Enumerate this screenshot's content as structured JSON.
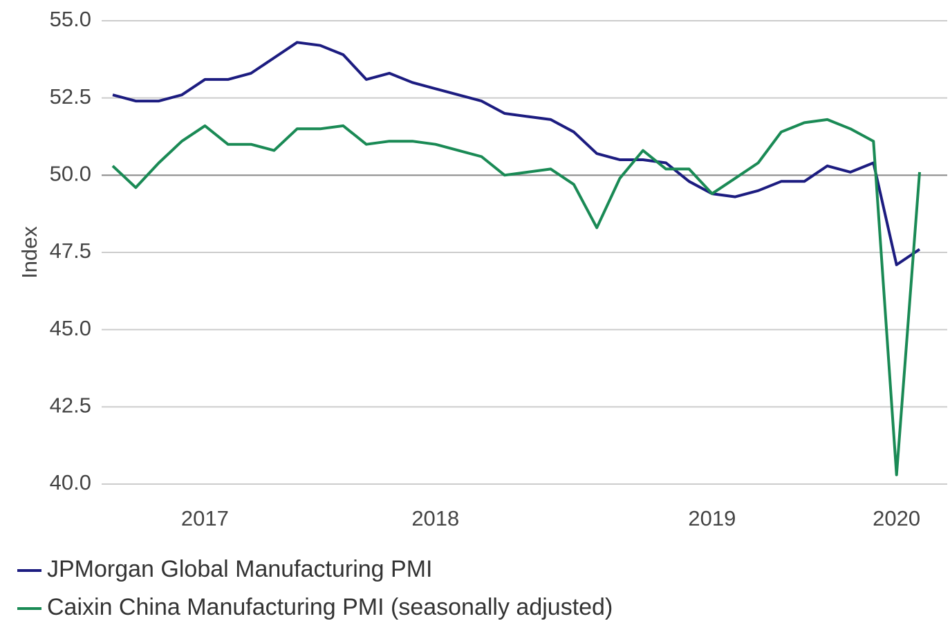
{
  "chart_data": {
    "type": "line",
    "ylabel": "Index",
    "categories": [
      null,
      null,
      null,
      null,
      "2017",
      null,
      null,
      null,
      null,
      null,
      null,
      null,
      null,
      null,
      "2018",
      null,
      null,
      null,
      null,
      null,
      null,
      null,
      null,
      null,
      null,
      null,
      "2019",
      null,
      null,
      null,
      null,
      null,
      null,
      null,
      "2020",
      null
    ],
    "series": [
      {
        "name": "JPMorgan Global Manufacturing PMI",
        "color": "#1c1c80",
        "values": [
          52.6,
          52.4,
          52.4,
          52.6,
          53.1,
          53.1,
          53.3,
          53.8,
          54.3,
          54.2,
          53.9,
          53.1,
          53.3,
          53.0,
          52.8,
          52.6,
          52.4,
          52.0,
          51.9,
          51.8,
          51.4,
          50.7,
          50.5,
          50.5,
          50.4,
          49.8,
          49.4,
          49.3,
          49.5,
          49.8,
          49.8,
          50.3,
          50.1,
          50.4,
          47.1,
          47.6
        ]
      },
      {
        "name": "Caixin China Manufacturing PMI (seasonally adjusted)",
        "color": "#1a8a55",
        "values": [
          50.3,
          49.6,
          50.4,
          51.1,
          51.6,
          51.0,
          51.0,
          50.8,
          51.5,
          51.5,
          51.6,
          51.0,
          51.1,
          51.1,
          51.0,
          50.8,
          50.6,
          50.0,
          50.1,
          50.2,
          49.7,
          48.3,
          49.9,
          50.8,
          50.2,
          50.2,
          49.4,
          49.9,
          50.4,
          51.4,
          51.7,
          51.8,
          51.5,
          51.1,
          40.3,
          50.1
        ]
      }
    ],
    "ylim": [
      40,
      55
    ],
    "yticks": [
      {
        "value": 40,
        "label": "40.0"
      },
      {
        "value": 42.5,
        "label": "42.5"
      },
      {
        "value": 45,
        "label": "45.0"
      },
      {
        "value": 47.5,
        "label": "47.5"
      },
      {
        "value": 50,
        "label": "50.0"
      },
      {
        "value": 52.5,
        "label": "52.5"
      },
      {
        "value": 55,
        "label": "55.0"
      }
    ],
    "grid": true,
    "legend": "bottom"
  }
}
